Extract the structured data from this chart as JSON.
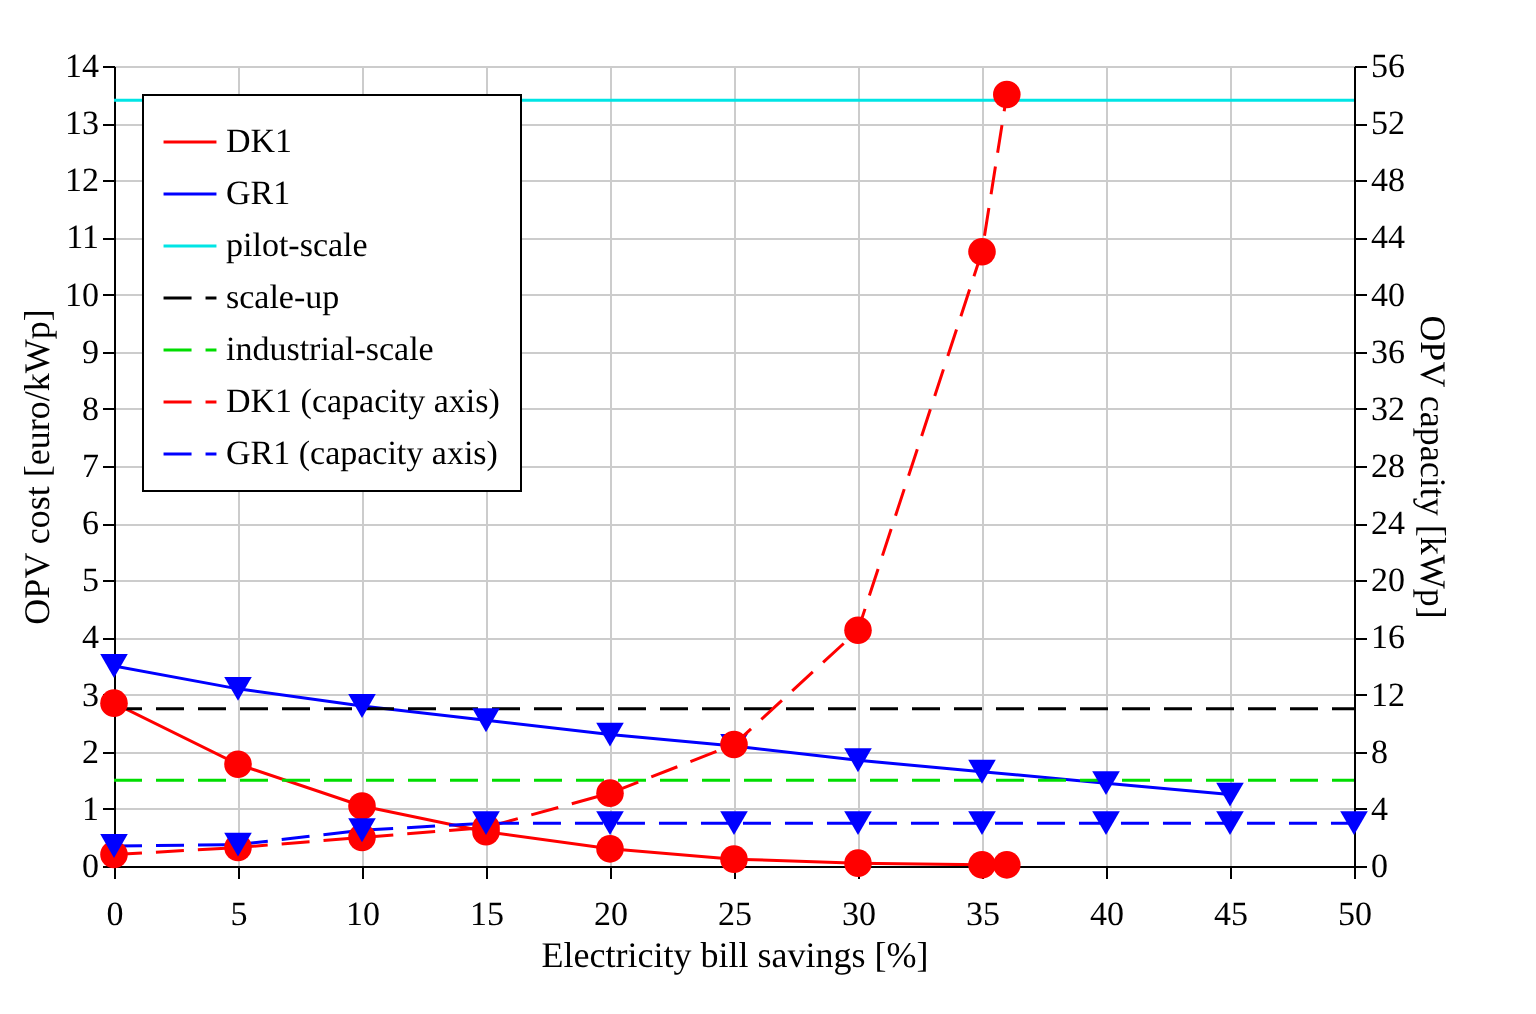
{
  "chart_data": {
    "type": "line",
    "xlabel": "Electricity bill savings [%]",
    "ylabel": "OPV cost [euro/kWp]",
    "y2label": "OPV capacity [kWp]",
    "xlim": [
      0,
      50
    ],
    "xticks": [
      0,
      5,
      10,
      15,
      20,
      25,
      30,
      35,
      40,
      45,
      50
    ],
    "ylim": [
      0,
      14
    ],
    "yticks": [
      0,
      1,
      2,
      3,
      4,
      5,
      6,
      7,
      8,
      9,
      10,
      11,
      12,
      13,
      14
    ],
    "y2lim": [
      0,
      56
    ],
    "y2ticks": [
      0,
      4,
      8,
      12,
      16,
      20,
      24,
      28,
      32,
      36,
      40,
      44,
      48,
      52,
      56
    ],
    "grid": true,
    "legend": "top left",
    "series": [
      {
        "name": "DK1",
        "color": "#ff0000",
        "marker": "circle",
        "line_style": "solid",
        "x": [
          0,
          5,
          10,
          15,
          20,
          25,
          30,
          35,
          36
        ],
        "values": [
          2.85,
          1.78,
          1.05,
          0.6,
          0.3,
          0.12,
          0.05,
          0.02,
          0.02
        ]
      },
      {
        "name": "GR1",
        "color": "#0000ff",
        "marker": "triangle",
        "line_style": "solid",
        "x": [
          0,
          5,
          10,
          15,
          20,
          25,
          30,
          35,
          40,
          45
        ],
        "values": [
          3.5,
          3.1,
          2.8,
          2.55,
          2.3,
          2.1,
          1.85,
          1.65,
          1.45,
          1.25
        ]
      },
      {
        "name": "pilot-scale",
        "color": "#00e5e5",
        "marker": "none",
        "line_style": "solid",
        "x": [
          0,
          50
        ],
        "values": [
          13.4,
          13.4
        ]
      },
      {
        "name": "scale-up",
        "color": "#000000",
        "marker": "none",
        "line_style": "dashed",
        "x": [
          0,
          50
        ],
        "values": [
          2.75,
          2.75
        ]
      },
      {
        "name": "industrial-scale",
        "color": "#00dd00",
        "marker": "none",
        "line_style": "dashed",
        "x": [
          0,
          50
        ],
        "values": [
          1.5,
          1.5
        ]
      },
      {
        "name": "DK1 (capacity axis)",
        "color": "#ff0000",
        "marker": "circle",
        "line_style": "dashed",
        "axis": "y2",
        "x": [
          0,
          5,
          10,
          15,
          20,
          25,
          30,
          35,
          36
        ],
        "values": [
          0.8,
          1.3,
          2.0,
          2.7,
          5.1,
          8.5,
          16.5,
          43,
          54
        ]
      },
      {
        "name": "GR1 (capacity axis)",
        "color": "#0000ff",
        "marker": "triangle",
        "line_style": "dashed",
        "axis": "y2",
        "x": [
          0,
          5,
          10,
          15,
          20,
          25,
          30,
          35,
          40,
          45,
          50
        ],
        "values": [
          1.4,
          1.5,
          2.5,
          3.0,
          3.0,
          3.0,
          3.0,
          3.0,
          3.0,
          3.0,
          3.0
        ]
      }
    ]
  }
}
